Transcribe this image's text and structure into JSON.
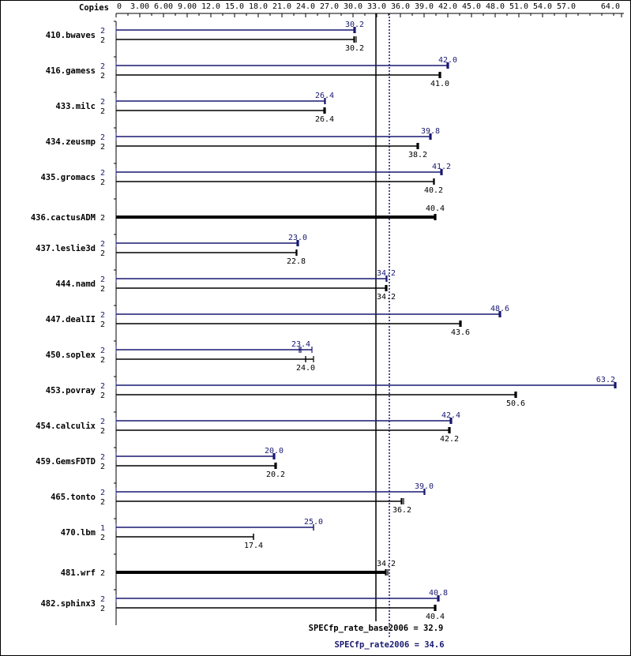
{
  "chart_data": {
    "type": "bar",
    "orientation": "horizontal",
    "copies_label": "Copies",
    "x_ticks": [
      "0",
      "3.00",
      "6.00",
      "9.00",
      "12.0",
      "15.0",
      "18.0",
      "21.0",
      "24.0",
      "27.0",
      "30.0",
      "33.0",
      "36.0",
      "39.0",
      "42.0",
      "45.0",
      "48.0",
      "51.0",
      "54.0",
      "57.0",
      "64.0"
    ],
    "x_tick_values": [
      0,
      3,
      6,
      9,
      12,
      15,
      18,
      21,
      24,
      27,
      30,
      33,
      36,
      39,
      42,
      45,
      48,
      51,
      54,
      57,
      64
    ],
    "xlim": [
      0,
      64
    ],
    "grid": false,
    "series": [
      {
        "name": "SPECfp_rate2006",
        "color": "#191970"
      },
      {
        "name": "SPECfp_rate_base2006",
        "color": "#000000"
      }
    ],
    "benchmarks": [
      {
        "name": "410.bwaves",
        "peak": {
          "copies": "2",
          "value": 30.2,
          "label": "30.2",
          "runs": [
            30.1,
            30.2,
            30.3
          ]
        },
        "base": {
          "copies": "2",
          "value": 30.2,
          "label": "30.2",
          "runs": [
            30.1,
            30.2,
            30.4
          ]
        }
      },
      {
        "name": "416.gamess",
        "peak": {
          "copies": "2",
          "value": 42.0,
          "label": "42.0",
          "runs": [
            41.9,
            42.0,
            42.1
          ]
        },
        "base": {
          "copies": "2",
          "value": 41.0,
          "label": "41.0",
          "runs": [
            40.9,
            41.0,
            41.1
          ]
        }
      },
      {
        "name": "433.milc",
        "peak": {
          "copies": "2",
          "value": 26.4,
          "label": "26.4",
          "runs": [
            26.4,
            26.4,
            26.5
          ]
        },
        "base": {
          "copies": "2",
          "value": 26.4,
          "label": "26.4",
          "runs": [
            26.3,
            26.4,
            26.5
          ]
        }
      },
      {
        "name": "434.zeusmp",
        "peak": {
          "copies": "2",
          "value": 39.8,
          "label": "39.8",
          "runs": [
            39.7,
            39.8,
            39.9
          ]
        },
        "base": {
          "copies": "2",
          "value": 38.2,
          "label": "38.2",
          "runs": [
            38.1,
            38.2,
            38.3
          ]
        }
      },
      {
        "name": "435.gromacs",
        "peak": {
          "copies": "2",
          "value": 41.2,
          "label": "41.2",
          "runs": [
            41.1,
            41.2,
            41.3
          ]
        },
        "base": {
          "copies": "2",
          "value": 40.2,
          "label": "40.2",
          "runs": [
            40.2,
            40.2,
            40.3
          ]
        }
      },
      {
        "name": "436.cactusADM",
        "combined": true,
        "base": {
          "copies": "2",
          "value": 40.4,
          "label": "40.4",
          "runs": [
            40.3,
            40.4,
            40.5
          ]
        }
      },
      {
        "name": "437.leslie3d",
        "peak": {
          "copies": "2",
          "value": 23.0,
          "label": "23.0",
          "runs": [
            22.9,
            23.0,
            23.1
          ]
        },
        "base": {
          "copies": "2",
          "value": 22.8,
          "label": "22.8",
          "runs": [
            22.8,
            22.8,
            22.9
          ]
        }
      },
      {
        "name": "444.namd",
        "peak": {
          "copies": "2",
          "value": 34.2,
          "label": "34.2",
          "runs": [
            34.2,
            34.2,
            34.3
          ]
        },
        "base": {
          "copies": "2",
          "value": 34.2,
          "label": "34.2",
          "runs": [
            34.1,
            34.2,
            34.3
          ]
        }
      },
      {
        "name": "447.dealII",
        "peak": {
          "copies": "2",
          "value": 48.6,
          "label": "48.6",
          "runs": [
            48.5,
            48.6,
            48.7
          ]
        },
        "base": {
          "copies": "2",
          "value": 43.6,
          "label": "43.6",
          "runs": [
            43.5,
            43.6,
            43.7
          ]
        }
      },
      {
        "name": "450.soplex",
        "peak": {
          "copies": "2",
          "value": 23.4,
          "label": "23.4",
          "runs": [
            23.2,
            23.4,
            24.8
          ]
        },
        "base": {
          "copies": "2",
          "value": 24.0,
          "label": "24.0",
          "runs": [
            24.0,
            24.0,
            25.0
          ]
        }
      },
      {
        "name": "453.povray",
        "peak": {
          "copies": "2",
          "value": 63.2,
          "label": "63.2",
          "runs": [
            63.1,
            63.2,
            63.3
          ]
        },
        "base": {
          "copies": "2",
          "value": 50.6,
          "label": "50.6",
          "runs": [
            50.5,
            50.6,
            50.7
          ]
        }
      },
      {
        "name": "454.calculix",
        "peak": {
          "copies": "2",
          "value": 42.4,
          "label": "42.4",
          "runs": [
            42.3,
            42.4,
            42.5
          ]
        },
        "base": {
          "copies": "2",
          "value": 42.2,
          "label": "42.2",
          "runs": [
            42.1,
            42.2,
            42.3
          ]
        }
      },
      {
        "name": "459.GemsFDTD",
        "peak": {
          "copies": "2",
          "value": 20.0,
          "label": "20.0",
          "runs": [
            19.9,
            20.0,
            20.1
          ]
        },
        "base": {
          "copies": "2",
          "value": 20.2,
          "label": "20.2",
          "runs": [
            20.1,
            20.2,
            20.3
          ]
        }
      },
      {
        "name": "465.tonto",
        "peak": {
          "copies": "2",
          "value": 39.0,
          "label": "39.0",
          "runs": [
            39.0,
            39.0,
            39.1
          ]
        },
        "base": {
          "copies": "2",
          "value": 36.2,
          "label": "36.2",
          "runs": [
            36.1,
            36.2,
            36.4
          ]
        }
      },
      {
        "name": "470.lbm",
        "peak": {
          "copies": "1",
          "value": 25.0,
          "label": "25.0",
          "runs": [
            25.0,
            25.0,
            25.0
          ]
        },
        "base": {
          "copies": "2",
          "value": 17.4,
          "label": "17.4",
          "runs": [
            17.4,
            17.4,
            17.4
          ]
        }
      },
      {
        "name": "481.wrf",
        "combined": true,
        "base": {
          "copies": "2",
          "value": 34.2,
          "label": "34.2",
          "runs": [
            34.1,
            34.2,
            34.4
          ]
        }
      },
      {
        "name": "482.sphinx3",
        "peak": {
          "copies": "2",
          "value": 40.8,
          "label": "40.8",
          "runs": [
            40.7,
            40.8,
            40.9
          ]
        },
        "base": {
          "copies": "2",
          "value": 40.4,
          "label": "40.4",
          "runs": [
            40.3,
            40.4,
            40.5
          ]
        }
      }
    ],
    "reference_lines": [
      {
        "name": "SPECfp_rate_base2006",
        "value": 32.9,
        "label": "SPECfp_rate_base2006 = 32.9",
        "style": "solid",
        "color": "#000000"
      },
      {
        "name": "SPECfp_rate2006",
        "value": 34.6,
        "label": "SPECfp_rate2006 = 34.6",
        "style": "dotted",
        "color": "#191970"
      }
    ]
  }
}
